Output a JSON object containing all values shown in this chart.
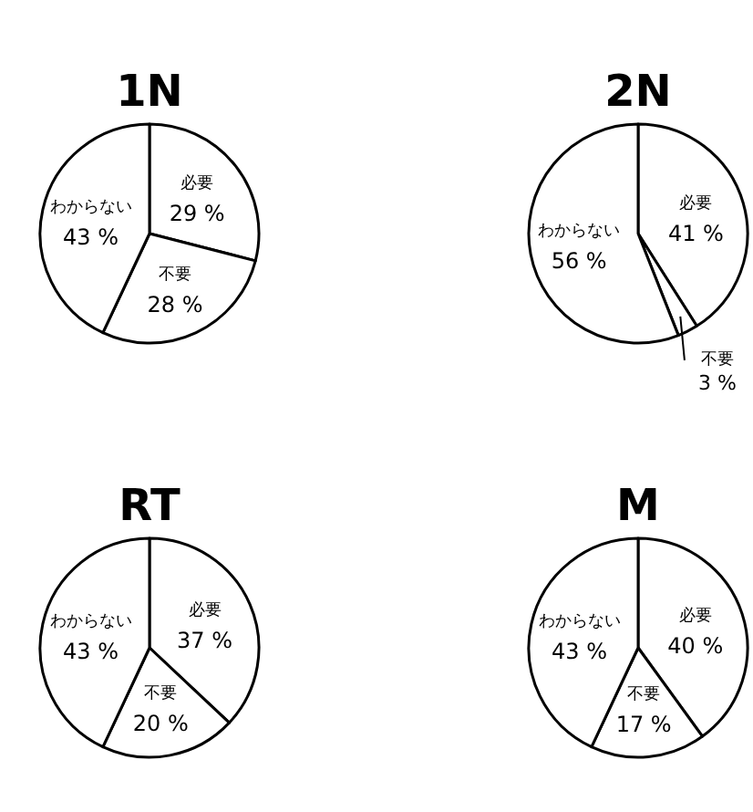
{
  "chart_data": [
    {
      "type": "pie",
      "title": "1N",
      "categories": [
        "必要",
        "不要",
        "わからない"
      ],
      "values": [
        29,
        28,
        43
      ],
      "colors": [
        "#ffffff",
        "#ffffff",
        "#ffffff"
      ],
      "value_labels": [
        "29 %",
        "28 %",
        "43 %"
      ]
    },
    {
      "type": "pie",
      "title": "2N",
      "categories": [
        "必要",
        "不要",
        "わからない"
      ],
      "values": [
        41,
        3,
        56
      ],
      "colors": [
        "#ffffff",
        "#ffffff",
        "#ffffff"
      ],
      "value_labels": [
        "41 %",
        "3 %",
        "56 %"
      ]
    },
    {
      "type": "pie",
      "title": "RT",
      "categories": [
        "必要",
        "不要",
        "わからない"
      ],
      "values": [
        37,
        20,
        43
      ],
      "colors": [
        "#ffffff",
        "#ffffff",
        "#ffffff"
      ],
      "value_labels": [
        "37 %",
        "20 %",
        "43 %"
      ]
    },
    {
      "type": "pie",
      "title": "M",
      "categories": [
        "必要",
        "不要",
        "わからない"
      ],
      "values": [
        40,
        17,
        43
      ],
      "colors": [
        "#ffffff",
        "#ffffff",
        "#ffffff"
      ],
      "value_labels": [
        "40 %",
        "17 %",
        "43 %"
      ]
    }
  ]
}
